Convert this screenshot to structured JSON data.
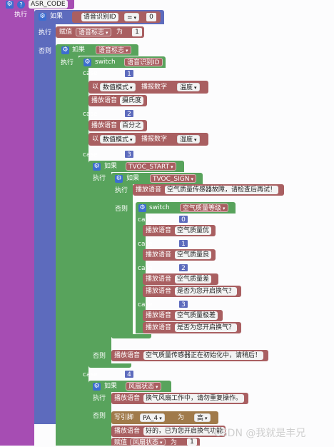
{
  "asr_block": {
    "title": "ASR_CODE",
    "do": "执行",
    "if": "如果",
    "else": "否则"
  },
  "if1": {
    "var": "语音识别ID",
    "op": "=",
    "value": "0"
  },
  "assign1": {
    "label": "赋值",
    "var": "语音标志",
    "as": "为",
    "value": "1"
  },
  "if2": {
    "var": "语音标志"
  },
  "switch1": {
    "label": "switch",
    "var": "语音识别ID",
    "case": "case"
  },
  "case1": {
    "value": "1",
    "mode_prefix": "以",
    "mode": "数值模式",
    "speak_num": "播报数字",
    "var": "温度",
    "speak": "播放语音",
    "word": "摄氏度"
  },
  "case2": {
    "value": "2",
    "speak": "播放语音",
    "word": "百分之",
    "mode_prefix": "以",
    "mode": "数值模式",
    "speak_num": "播报数字",
    "var": "湿度"
  },
  "case3": {
    "value": "3",
    "if_var": "TVOC_START",
    "inner_if_var": "TVOC_SIGN",
    "do_speak": "播放语音",
    "do_text": "空气质量传感器故障，请检查后再试！",
    "switch_var": "空气质量等级",
    "subcases": [
      {
        "value": "0",
        "lines": [
          "空气质量优"
        ]
      },
      {
        "value": "1",
        "lines": [
          "空气质量良"
        ]
      },
      {
        "value": "2",
        "lines": [
          "空气质量差",
          "是否为您开启换气？"
        ]
      },
      {
        "value": "3",
        "lines": [
          "空气质量极差",
          "是否为您开启换气？"
        ]
      }
    ],
    "else_text": "空气质量传感器正在初始化中，请稍后！"
  },
  "case4": {
    "value": "4",
    "if_var": "风扇状态",
    "do_text": "换气风扇工作中，请勿重复操作。",
    "write_label": "写引脚",
    "pin": "PA_4",
    "as": "为",
    "level": "高",
    "else_text": "好的，已为您开启换气功能",
    "assign_label": "赋值",
    "assign_var": "风扇状态",
    "assign_as": "为",
    "assign_value": "1"
  },
  "watermark": "CSDN @我就是丰兄",
  "icons": {
    "gear": "gear-icon",
    "help": "help-icon",
    "dropdown": "dropdown-arrow-icon"
  }
}
